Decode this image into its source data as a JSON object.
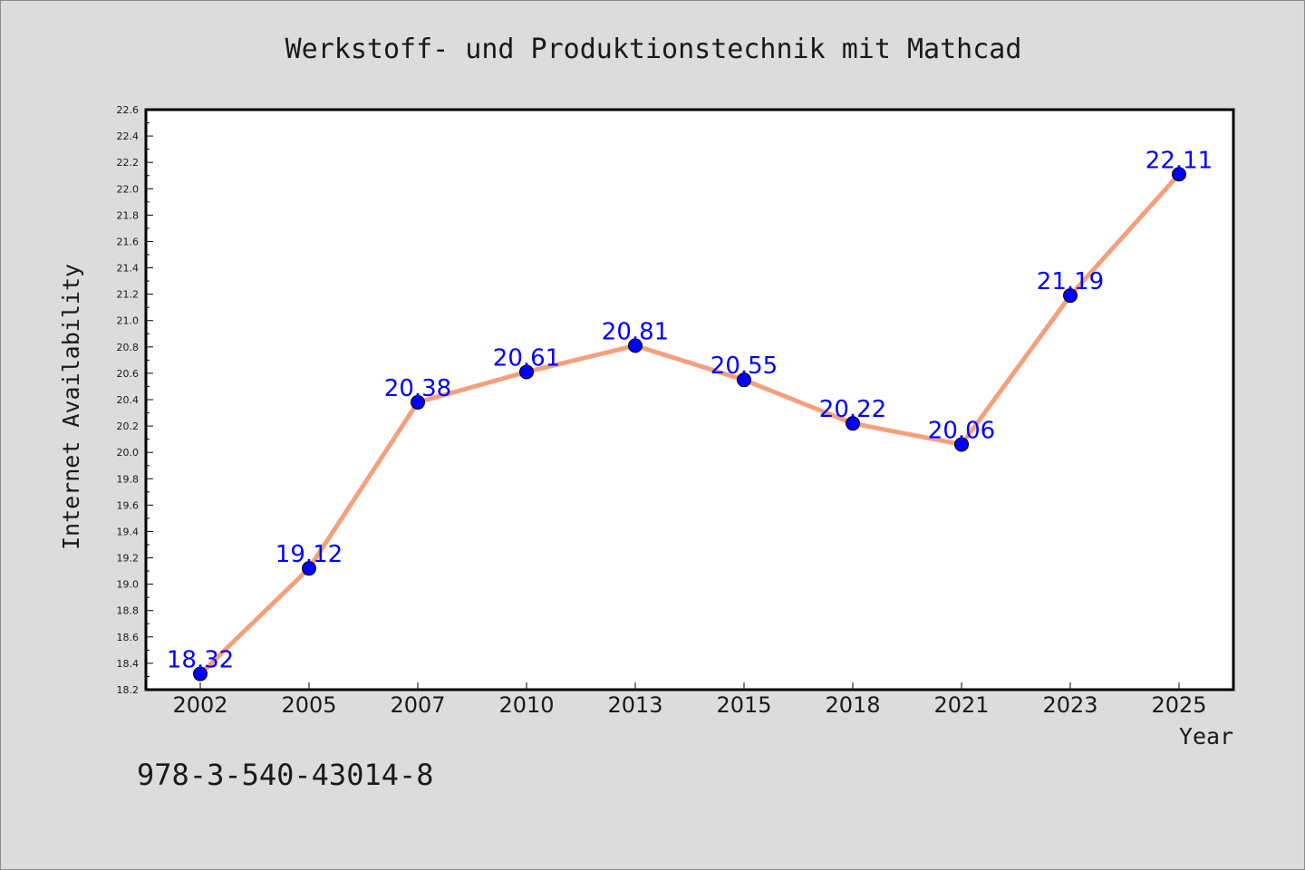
{
  "chart_data": {
    "type": "line",
    "title": "Werkstoff- und Produktionstechnik mit Mathcad",
    "xlabel": "Year",
    "ylabel": "Internet Availability",
    "categories": [
      "2002",
      "2005",
      "2007",
      "2010",
      "2013",
      "2015",
      "2018",
      "2021",
      "2023",
      "2025"
    ],
    "series": [
      {
        "values": [
          18.32,
          19.12,
          20.38,
          20.61,
          20.81,
          20.55,
          20.22,
          20.06,
          21.19,
          22.11
        ],
        "labels": [
          "18.32",
          "19.12",
          "20.38",
          "20.61",
          "20.81",
          "20.55",
          "20.22",
          "20.06",
          "21.19",
          "22.11"
        ],
        "line_color": "#f4a07c",
        "marker_color": "#0000ff"
      }
    ],
    "ylim": [
      18.2,
      22.6
    ],
    "yticks": [
      "18.2",
      "18.4",
      "18.6",
      "18.8",
      "19.0",
      "19.2",
      "19.4",
      "19.6",
      "19.8",
      "20.0",
      "20.2",
      "20.4",
      "20.6",
      "20.8",
      "21.0",
      "21.2",
      "21.4",
      "21.6",
      "21.8",
      "22.0",
      "22.2",
      "22.4",
      "22.6"
    ],
    "grid": false,
    "legend": "none"
  },
  "footnote": "978-3-540-43014-8",
  "colors": {
    "background": "#dcdcdc",
    "plot_background": "#ffffff",
    "label_color": "#0000ff"
  }
}
